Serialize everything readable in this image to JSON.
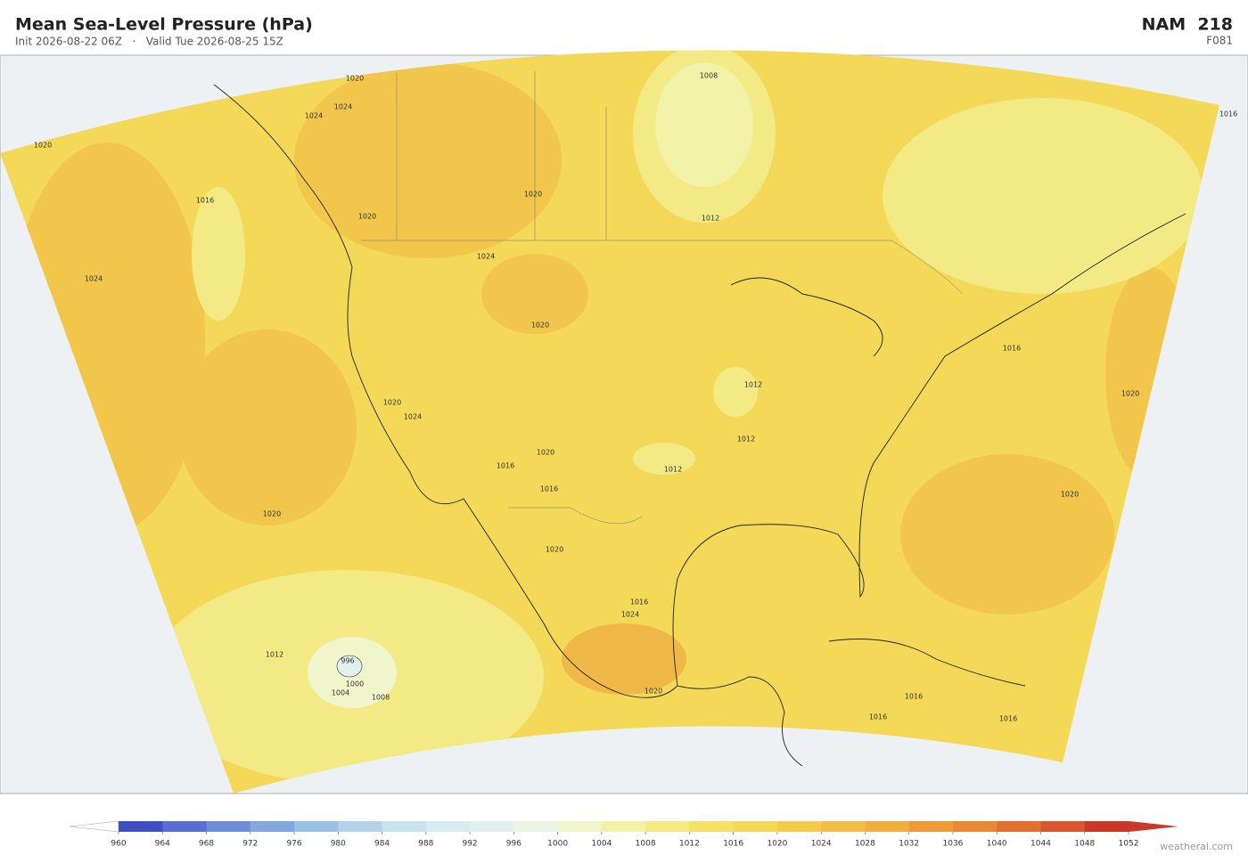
{
  "header": {
    "title": "Mean Sea-Level Pressure  (hPa)",
    "subtitle": "Init 2026-08-22 06Z   ·   Valid Tue 2026-08-25 15Z",
    "model": "NAM  218",
    "forecast_hour": "F081"
  },
  "map": {
    "contour_labels": [
      1020,
      1016,
      1024,
      1020,
      1012,
      996,
      1000,
      1004,
      1008,
      1020,
      1024,
      1024,
      1020,
      1020,
      1024,
      1020,
      1020,
      1024,
      1016,
      1020,
      1016,
      1020,
      1012,
      1012,
      1012,
      1012,
      1008,
      1016,
      1016,
      1020,
      1020,
      1020,
      1016,
      1016,
      1016,
      1016,
      1024
    ]
  },
  "colorbar": {
    "ticks": [
      960,
      964,
      968,
      972,
      976,
      980,
      984,
      988,
      992,
      996,
      1000,
      1004,
      1008,
      1012,
      1016,
      1020,
      1024,
      1028,
      1032,
      1036,
      1040,
      1044,
      1048,
      1052
    ],
    "colors": [
      "#3f4fc0",
      "#5a6fd0",
      "#6f8fd8",
      "#84a8dd",
      "#9cc0e4",
      "#b3d2ea",
      "#c8e2ee",
      "#d6ecf0",
      "#e1f1ee",
      "#eaf5e4",
      "#f0f5cc",
      "#f2f1a8",
      "#f3ea85",
      "#f4e268",
      "#f4d858",
      "#f3cc4c",
      "#f2bf44",
      "#f0ae3e",
      "#ee9c3a",
      "#e98836",
      "#e27032",
      "#d8572e",
      "#c8392a"
    ]
  },
  "footer": {
    "credit": "weatherai.com"
  }
}
